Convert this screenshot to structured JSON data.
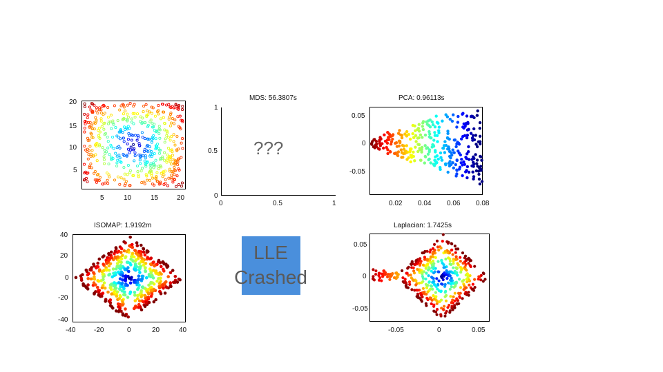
{
  "chart_data": [
    {
      "type": "scatter",
      "title": "",
      "xlim": [
        1,
        21
      ],
      "ylim": [
        1,
        21
      ],
      "xticks": [
        "5",
        "10",
        "15",
        "20"
      ],
      "yticks": [
        "20",
        "15",
        "10",
        "5"
      ],
      "marker": "open-circle",
      "colormap": "jet",
      "description": ""
    },
    {
      "type": "scatter",
      "title": "MDS: 56.3807s",
      "xlim": [
        0,
        1
      ],
      "ylim": [
        0,
        1
      ],
      "xticks": [
        "0",
        "0.5",
        "1"
      ],
      "yticks": [
        "1",
        "0.5",
        "0"
      ],
      "annotation": "???"
    },
    {
      "type": "scatter",
      "title": "PCA: 0.96113s",
      "xlim": [
        0.003,
        0.082
      ],
      "ylim": [
        -0.095,
        0.066
      ],
      "xticks": [
        "0.02",
        "0.04",
        "0.06",
        "0.08"
      ],
      "yticks": [
        "0.05",
        "0",
        "-0.05"
      ],
      "marker": "filled-circle",
      "colormap": "jet"
    },
    {
      "type": "scatter",
      "title": "ISOMAP: 1.9192m",
      "xlim": [
        -40,
        40
      ],
      "ylim": [
        -42,
        42
      ],
      "xticks": [
        "-40",
        "-20",
        "0",
        "20",
        "40"
      ],
      "yticks": [
        "40",
        "20",
        "0",
        "-20",
        "-40"
      ],
      "marker": "filled-circle",
      "colormap": "jet"
    },
    {
      "type": "scatter",
      "title": "",
      "annotation": "LLE Crashed"
    },
    {
      "type": "scatter",
      "title": "Laplacian: 1.7425s",
      "xlim": [
        -0.085,
        0.065
      ],
      "ylim": [
        -0.068,
        0.065
      ],
      "xticks": [
        "-0.05",
        "0",
        "0.05"
      ],
      "yticks": [
        "0.05",
        "0",
        "-0.05"
      ],
      "marker": "filled-circle",
      "colormap": "jet"
    }
  ]
}
